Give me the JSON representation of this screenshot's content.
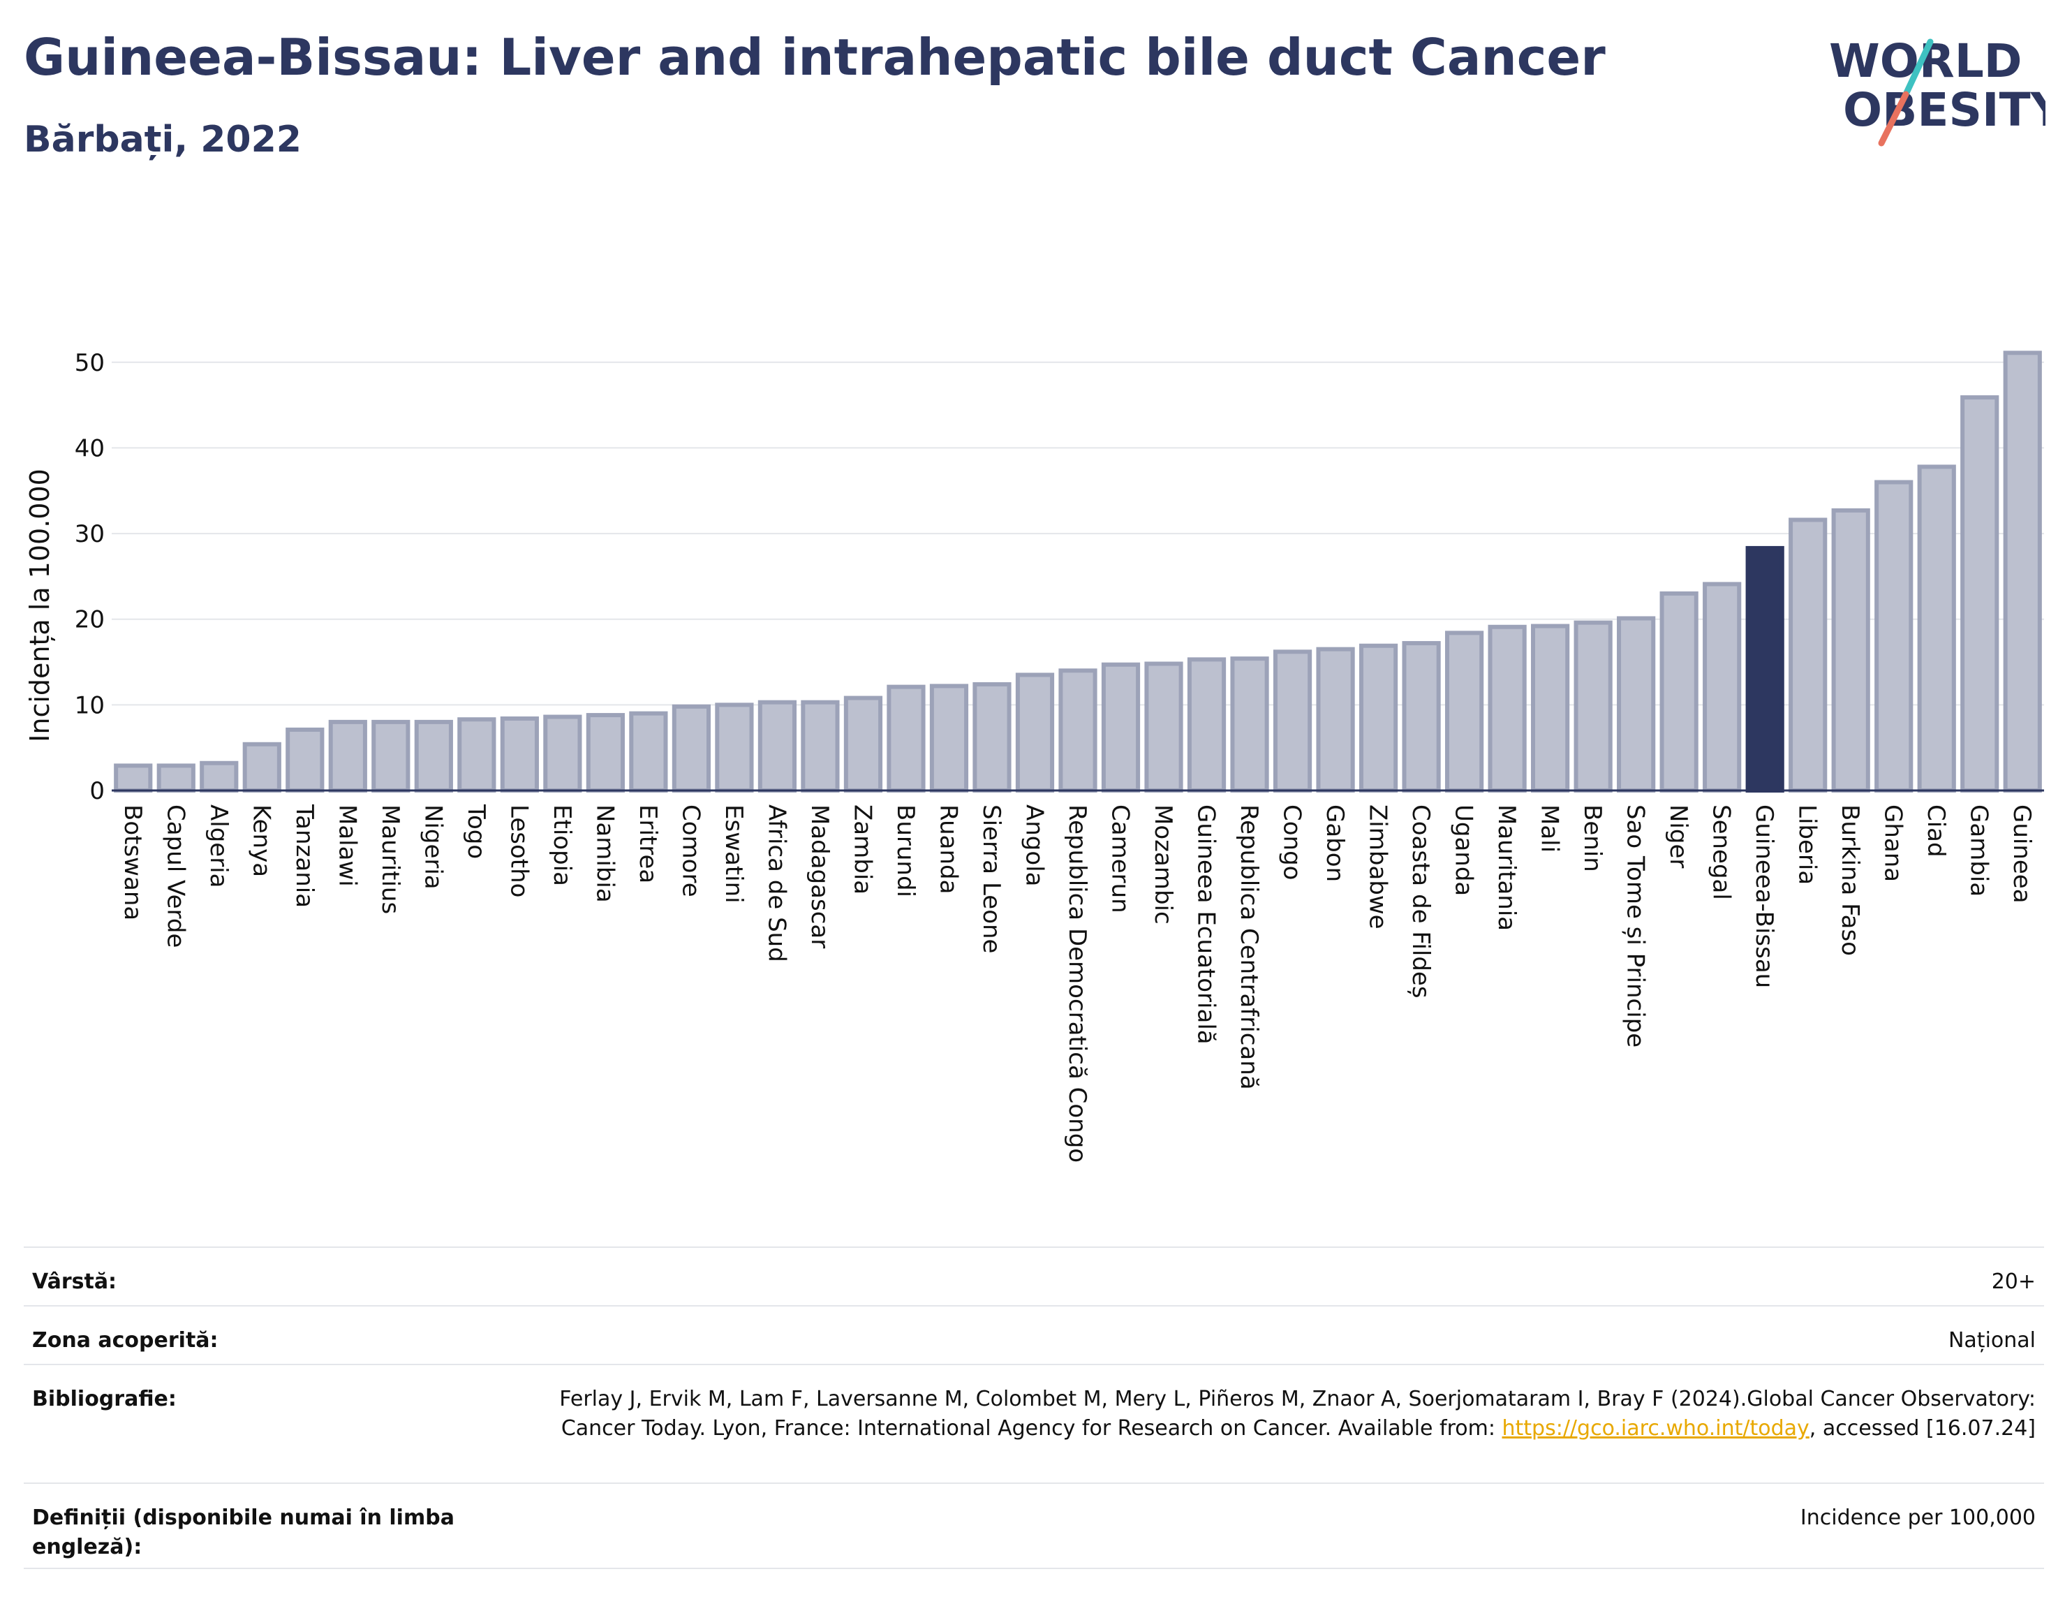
{
  "header": {
    "title": "Guineea-Bissau: Liver and intrahepatic bile duct Cancer",
    "subtitle": "Bărbați, 2022"
  },
  "logo": {
    "line1": "WORLD",
    "line2": "OBESITY",
    "accent": "#e8725e",
    "accent2": "#3ec1c1"
  },
  "colors": {
    "bar": "#bcc0cf",
    "bar_stroke": "#9ca2b8",
    "highlight": "#2d3760",
    "grid": "#e4e6ea",
    "axis": "#2d3760"
  },
  "chart_data": {
    "type": "bar",
    "ylabel": "Incidența la 100.000",
    "ylim": [
      0,
      53
    ],
    "yticks": [
      0,
      10,
      20,
      30,
      40,
      50
    ],
    "grid": true,
    "highlight": "Guineea-Bissau",
    "categories": [
      "Botswana",
      "Capul Verde",
      "Algeria",
      "Kenya",
      "Tanzania",
      "Malawi",
      "Mauritius",
      "Nigeria",
      "Togo",
      "Lesotho",
      "Etiopia",
      "Namibia",
      "Eritrea",
      "Comore",
      "Eswatini",
      "Africa de Sud",
      "Madagascar",
      "Zambia",
      "Burundi",
      "Ruanda",
      "Sierra Leone",
      "Angola",
      "Republica Democratică Congo",
      "Camerun",
      "Mozambic",
      "Guineea Ecuatorială",
      "Republica Centrafricană",
      "Congo",
      "Gabon",
      "Zimbabwe",
      "Coasta de Fildeș",
      "Uganda",
      "Mauritania",
      "Mali",
      "Benin",
      "Sao Tome și Principe",
      "Niger",
      "Senegal",
      "Guineea-Bissau",
      "Liberia",
      "Burkina Faso",
      "Ghana",
      "Ciad",
      "Gambia",
      "Guineea"
    ],
    "values": [
      2.9,
      2.9,
      3.2,
      5.4,
      7.1,
      8.0,
      8.0,
      8.0,
      8.3,
      8.4,
      8.6,
      8.8,
      9.0,
      9.8,
      10.0,
      10.3,
      10.3,
      10.8,
      12.1,
      12.2,
      12.4,
      13.5,
      14.0,
      14.7,
      14.8,
      15.3,
      15.4,
      16.2,
      16.5,
      16.9,
      17.2,
      18.4,
      19.1,
      19.2,
      19.6,
      20.1,
      23.0,
      24.1,
      28.3,
      31.6,
      32.7,
      36.0,
      37.8,
      45.9,
      51.1
    ]
  },
  "meta": {
    "age_label": "Vârstă:",
    "age_value": "20+",
    "area_label": "Zona acoperită:",
    "area_value": "Național",
    "bib_label": "Bibliografie:",
    "bib_text_1": "Ferlay J, Ervik M, Lam F, Laversanne M, Colombet M, Mery L, Piñeros M, Znaor A, Soerjomataram I, Bray F (2024).Global Cancer Observatory: Cancer Today. Lyon, France: International Agency for Research on Cancer. Available from: ",
    "bib_link": "https://gco.iarc.who.int/today",
    "bib_text_2": ", accessed [16.07.24]",
    "def_label": "Definiții (disponibile numai în limba engleză):",
    "def_value": "Incidence per 100,000"
  }
}
